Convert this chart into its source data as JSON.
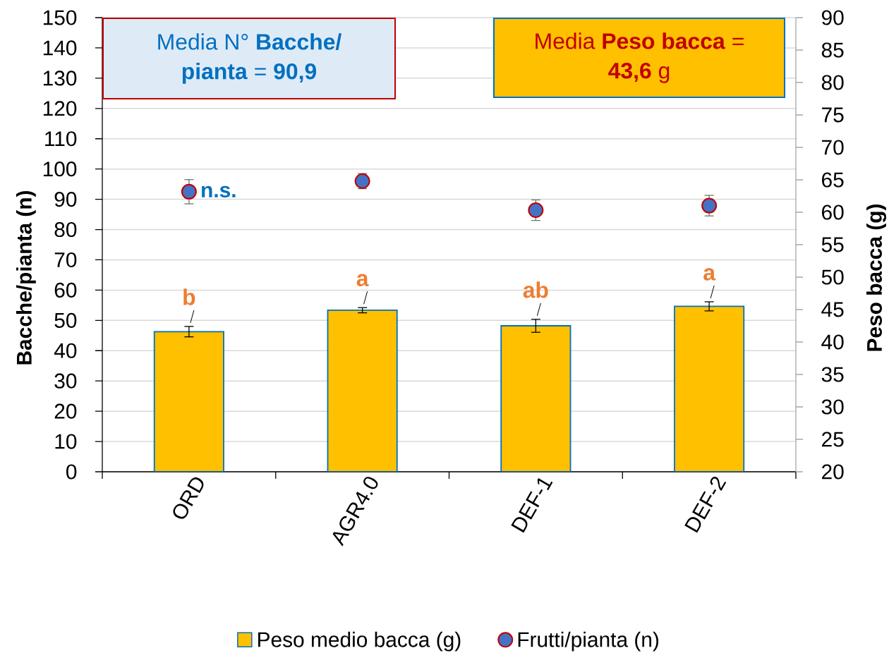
{
  "chart_data": {
    "type": "bar",
    "categories": [
      "ORD",
      "AGR4.0",
      "DEF-1",
      "DEF-2"
    ],
    "ylabel": "Bacche/pianta (n)",
    "y2label": "Peso bacca (g)",
    "ylim": [
      0,
      150
    ],
    "yticks": [
      0,
      10,
      20,
      30,
      40,
      50,
      60,
      70,
      80,
      90,
      100,
      110,
      120,
      130,
      140,
      150
    ],
    "y2lim": [
      20,
      90
    ],
    "y2ticks": [
      20,
      25,
      30,
      35,
      40,
      45,
      50,
      55,
      60,
      65,
      70,
      75,
      80,
      85,
      90
    ],
    "series": [
      {
        "name": "Peso medio bacca (g)",
        "axis": "y2",
        "color": "#ffc000",
        "values": [
          41.6,
          44.9,
          42.5,
          45.5
        ],
        "errors": [
          0.8,
          0.4,
          1.0,
          0.7
        ],
        "value_labels": [
          "b",
          "a",
          "ab",
          "a"
        ]
      },
      {
        "name": "Frutti/pianta (n)",
        "type": "scatter",
        "axis": "y",
        "color": "#4472c4",
        "marker": "circle",
        "values": [
          92.5,
          96.0,
          86.4,
          87.9
        ],
        "errors": [
          4.0,
          2.5,
          3.4,
          3.4
        ],
        "value_labels": [
          "n.s.",
          null,
          null,
          null
        ]
      }
    ],
    "annotations": [
      "Media N° **Bacche/ pianta** = **90,9**",
      "Media **Peso bacca** = **43,6** g"
    ],
    "grid": "y",
    "legend": "bottom"
  }
}
